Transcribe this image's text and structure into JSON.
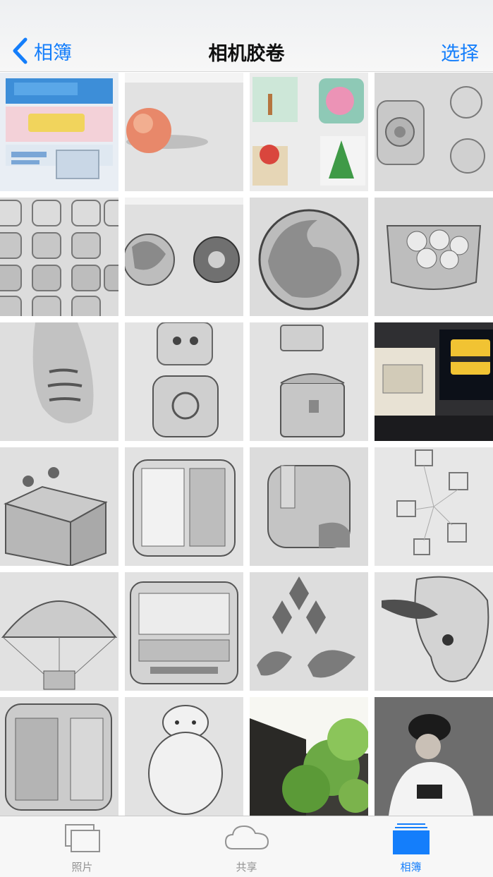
{
  "nav": {
    "back_label": "相簿",
    "title": "相机胶卷",
    "select_label": "选择"
  },
  "photos": [
    {
      "description": "poster"
    },
    {
      "description": "peach drawing"
    },
    {
      "description": "colored icons"
    },
    {
      "description": "pencil buttons"
    },
    {
      "description": "icon grid sketch"
    },
    {
      "description": "firefox and chrome sketch"
    },
    {
      "description": "firefox sketch"
    },
    {
      "description": "bowl of dumplings"
    },
    {
      "description": "cat tail sketch"
    },
    {
      "description": "character icons"
    },
    {
      "description": "treasure chests sketch"
    },
    {
      "description": "chest screen photo"
    },
    {
      "description": "music box sketch"
    },
    {
      "description": "accordion sketch"
    },
    {
      "description": "folder icon sketch"
    },
    {
      "description": "perspective cubes"
    },
    {
      "description": "parachute sketch"
    },
    {
      "description": "bus sketch"
    },
    {
      "description": "logos sketch"
    },
    {
      "description": "bird sketch"
    },
    {
      "description": "app icon sketch"
    },
    {
      "description": "baymax sketch"
    },
    {
      "description": "maple tree photo"
    },
    {
      "description": "person photo"
    }
  ],
  "tabs": [
    {
      "label": "照片",
      "icon": "photos-icon"
    },
    {
      "label": "共享",
      "icon": "cloud-icon"
    },
    {
      "label": "相簿",
      "icon": "albums-icon"
    }
  ],
  "colors": {
    "accent": "#147efb"
  }
}
